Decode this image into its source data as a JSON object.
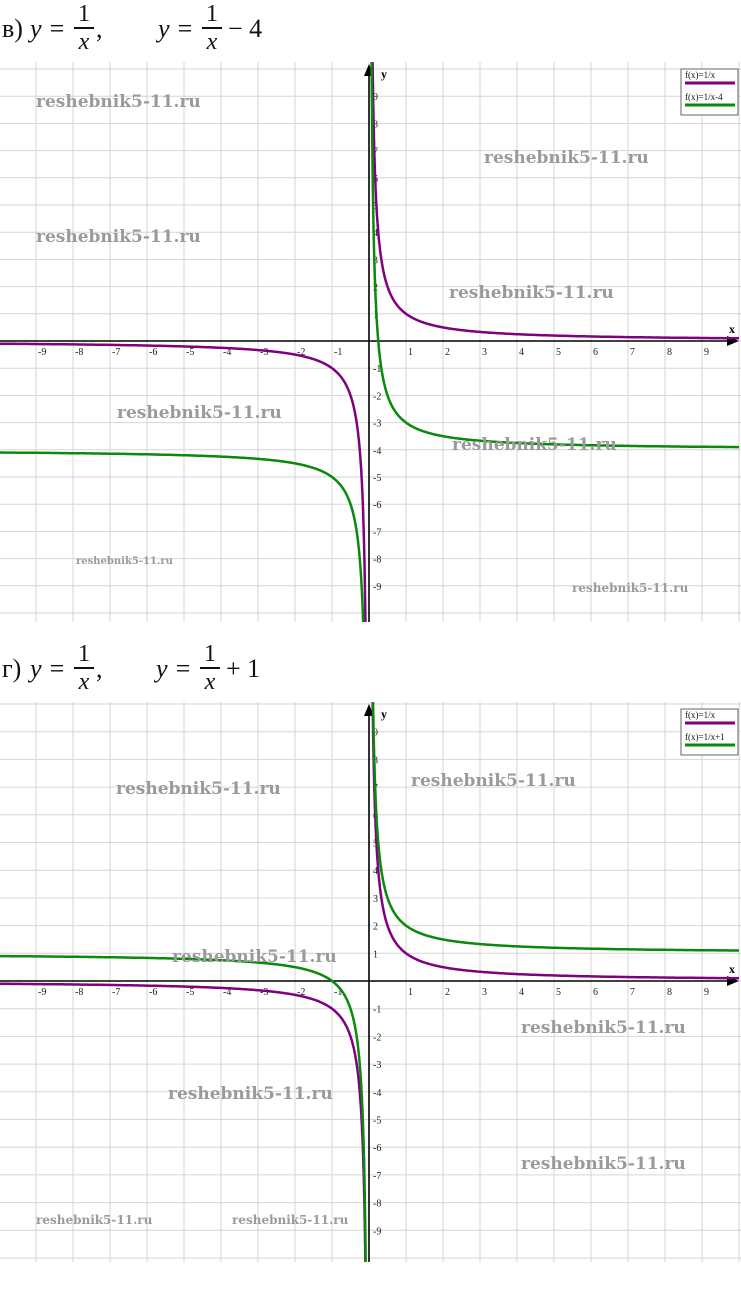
{
  "problem_v": {
    "label": "в)",
    "eq1_lhs": "y =",
    "eq1_num": "1",
    "eq1_den": "x",
    "eq1_tail": ",",
    "eq2_lhs": "y =",
    "eq2_num": "1",
    "eq2_den": "x",
    "eq2_tail": "− 4"
  },
  "problem_g": {
    "label": "г)",
    "eq1_lhs": "y =",
    "eq1_num": "1",
    "eq1_den": "x",
    "eq1_tail": ",",
    "eq2_lhs": "y =",
    "eq2_num": "1",
    "eq2_den": "x",
    "eq2_tail": "+ 1"
  },
  "watermark_text": "reshebnik5-11.ru",
  "colors": {
    "purple": "#800080",
    "green": "#0a8a0a",
    "grid": "#d6d6d6",
    "axis": "#000000",
    "watermark": "#9a9a9a"
  },
  "chart_data": [
    {
      "type": "line",
      "xlabel": "x",
      "ylabel": "y",
      "xlim": [
        -10,
        10
      ],
      "ylim": [
        -10,
        10
      ],
      "x_ticks": [
        -9,
        -8,
        -7,
        -6,
        -5,
        -4,
        -3,
        -2,
        -1,
        1,
        2,
        3,
        4,
        5,
        6,
        7,
        8,
        9
      ],
      "y_ticks": [
        -9,
        -8,
        -7,
        -6,
        -5,
        -4,
        -3,
        -2,
        -1,
        1,
        2,
        3,
        4,
        5,
        6,
        7,
        8,
        9
      ],
      "grid": true,
      "legend_position": "top-right",
      "series": [
        {
          "name": "f(x)=1/x",
          "color": "#800080",
          "formula": "1/x"
        },
        {
          "name": "f(x)=1/x-4",
          "color": "#0a8a0a",
          "formula": "1/x-4"
        }
      ]
    },
    {
      "type": "line",
      "xlabel": "x",
      "ylabel": "y",
      "xlim": [
        -10,
        10
      ],
      "ylim": [
        -10,
        10
      ],
      "x_ticks": [
        -9,
        -8,
        -7,
        -6,
        -5,
        -4,
        -3,
        -2,
        -1,
        1,
        2,
        3,
        4,
        5,
        6,
        7,
        8,
        9
      ],
      "y_ticks": [
        -9,
        -8,
        -7,
        -6,
        -5,
        -4,
        -3,
        -2,
        -1,
        1,
        2,
        3,
        4,
        5,
        6,
        7,
        8,
        9
      ],
      "grid": true,
      "legend_position": "top-right",
      "series": [
        {
          "name": "f(x)=1/x",
          "color": "#800080",
          "formula": "1/x"
        },
        {
          "name": "f(x)=1/x+1",
          "color": "#0a8a0a",
          "formula": "1/x+1"
        }
      ]
    }
  ]
}
